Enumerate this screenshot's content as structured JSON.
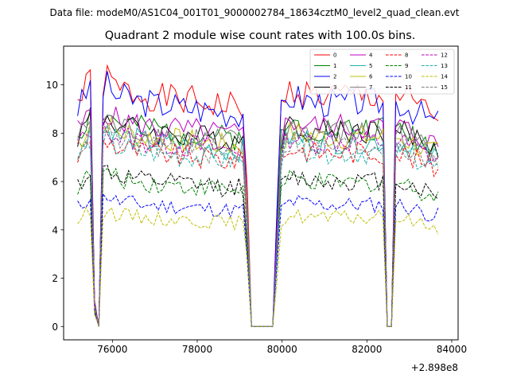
{
  "chart_data": {
    "type": "line",
    "suptitle": "Data file: modeM0/AS1C04_001T01_9000002784_18634cztM0_level2_quad_clean.evt",
    "title": "Quadrant 2 module wise count rates with 100.0s bins.",
    "xlabel": "",
    "ylabel": "",
    "x_offset_label": "+2.898e8",
    "x_start": 75180,
    "x_step": 100,
    "x_count": 86,
    "xlim": [
      74850,
      84150
    ],
    "ylim": [
      -0.55,
      11.6
    ],
    "xticks": [
      76000,
      78000,
      80000,
      82000,
      84000
    ],
    "xtick_labels": [
      "76000",
      "78000",
      "80000",
      "82000",
      "84000"
    ],
    "yticks": [
      0,
      2,
      4,
      6,
      8,
      10
    ],
    "ytick_labels": [
      "0",
      "2",
      "4",
      "6",
      "8",
      "10"
    ],
    "profile": [
      0.88,
      0.9,
      0.93,
      0.97,
      0.1,
      0.0,
      0.95,
      0.97,
      0.95,
      0.93,
      0.92,
      0.92,
      0.92,
      0.91,
      0.91,
      0.9,
      0.9,
      0.9,
      0.9,
      0.89,
      0.89,
      0.89,
      0.89,
      0.89,
      0.88,
      0.88,
      0.88,
      0.88,
      0.88,
      0.87,
      0.87,
      0.87,
      0.87,
      0.87,
      0.86,
      0.86,
      0.86,
      0.86,
      0.86,
      0.86,
      0.5,
      0.0,
      0.0,
      0.0,
      0.0,
      0.0,
      0.0,
      0.42,
      0.86,
      0.9,
      0.92,
      0.92,
      0.92,
      0.91,
      0.91,
      0.91,
      0.9,
      0.9,
      0.9,
      0.9,
      0.9,
      0.9,
      0.9,
      0.9,
      0.9,
      0.9,
      0.9,
      0.9,
      0.9,
      0.9,
      0.9,
      0.9,
      0.9,
      0.0,
      0.0,
      0.9,
      0.9,
      0.89,
      0.88,
      0.87,
      0.86,
      0.85,
      0.84,
      0.83,
      0.82,
      0.82
    ],
    "series": [
      {
        "name": "0",
        "level": 10.6,
        "color": "#ff0000",
        "dash": "solid",
        "seed": 1
      },
      {
        "name": "1",
        "level": 9.1,
        "color": "#008000",
        "dash": "solid",
        "seed": 2
      },
      {
        "name": "2",
        "level": 10.3,
        "color": "#0000ff",
        "dash": "solid",
        "seed": 3
      },
      {
        "name": "3",
        "level": 9.0,
        "color": "#000000",
        "dash": "solid",
        "seed": 4
      },
      {
        "name": "4",
        "level": 9.2,
        "color": "#bf00bf",
        "dash": "solid",
        "seed": 5
      },
      {
        "name": "5",
        "level": 8.5,
        "color": "#20b2aa",
        "dash": "solid",
        "seed": 6
      },
      {
        "name": "6",
        "level": 8.7,
        "color": "#bfbf00",
        "dash": "solid",
        "seed": 7
      },
      {
        "name": "7",
        "level": 8.9,
        "color": "#808080",
        "dash": "solid",
        "seed": 8
      },
      {
        "name": "8",
        "level": 8.0,
        "color": "#ff0000",
        "dash": "dashed",
        "seed": 9
      },
      {
        "name": "9",
        "level": 6.6,
        "color": "#008000",
        "dash": "dashed",
        "seed": 10
      },
      {
        "name": "10",
        "level": 5.6,
        "color": "#0000ff",
        "dash": "dashed",
        "seed": 11
      },
      {
        "name": "11",
        "level": 6.7,
        "color": "#000000",
        "dash": "dashed",
        "seed": 12
      },
      {
        "name": "12",
        "level": 8.5,
        "color": "#bf00bf",
        "dash": "dashed",
        "seed": 13
      },
      {
        "name": "13",
        "level": 8.0,
        "color": "#20b2aa",
        "dash": "dashed",
        "seed": 14
      },
      {
        "name": "14",
        "level": 5.0,
        "color": "#bfbf00",
        "dash": "dashed",
        "seed": 15
      },
      {
        "name": "15",
        "level": 8.3,
        "color": "#808080",
        "dash": "dashed",
        "seed": 16
      }
    ],
    "legend_location": "top-right"
  }
}
